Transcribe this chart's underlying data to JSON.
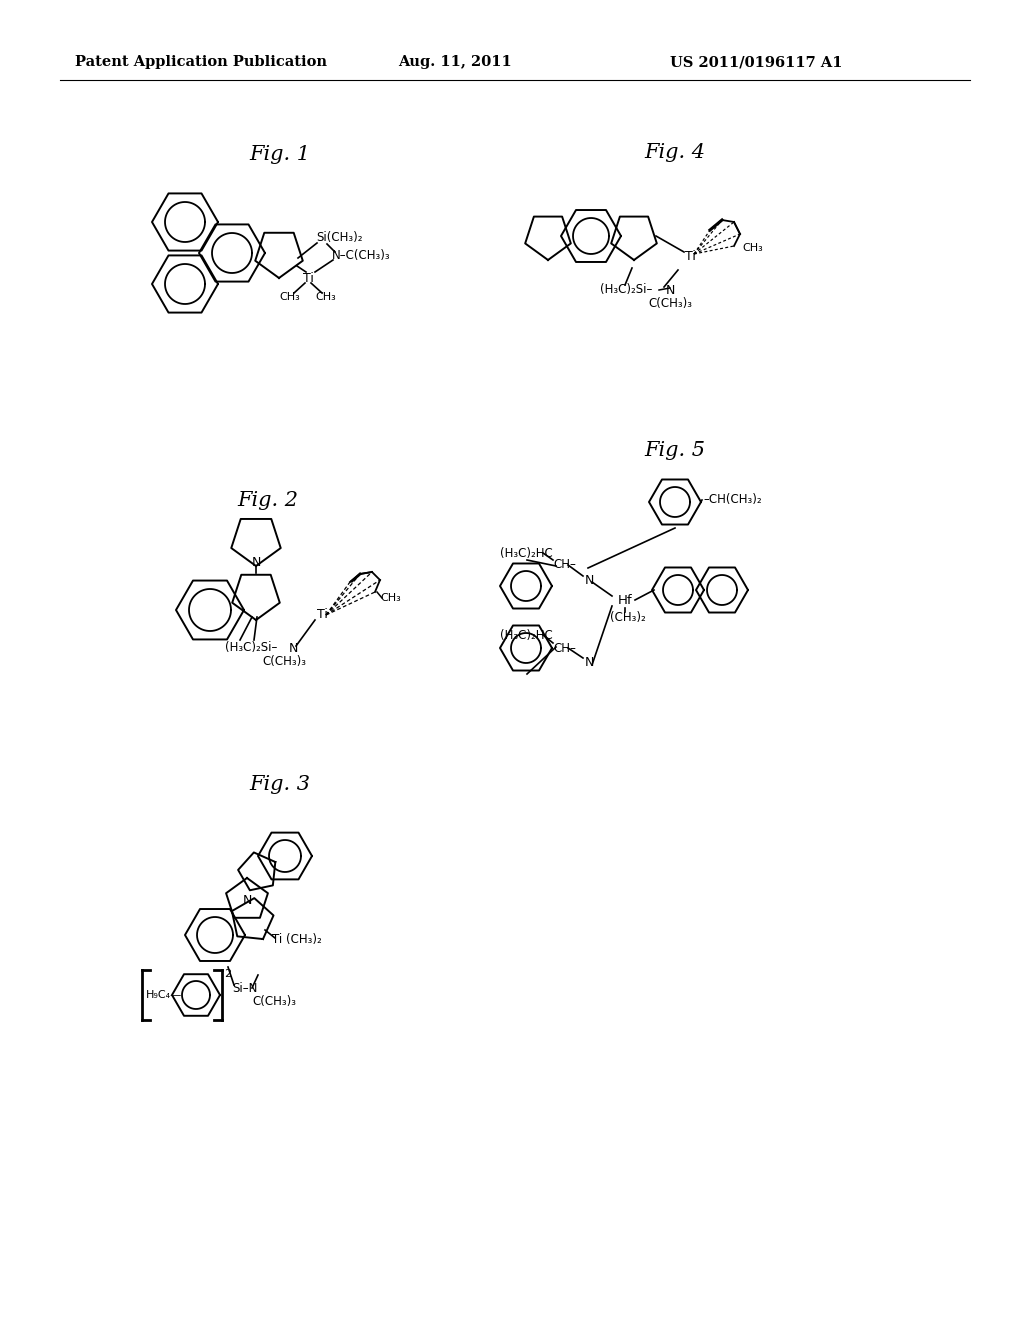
{
  "bg_color": "#ffffff",
  "header_left": "Patent Application Publication",
  "header_center": "Aug. 11, 2011",
  "header_right": "US 2011/0196117 A1",
  "header_fontsize": 10.5,
  "fig_label_fontsize": 15,
  "fig1_label": "Fig. 1",
  "fig2_label": "Fig. 2",
  "fig3_label": "Fig. 3",
  "fig4_label": "Fig. 4",
  "fig5_label": "Fig. 5"
}
